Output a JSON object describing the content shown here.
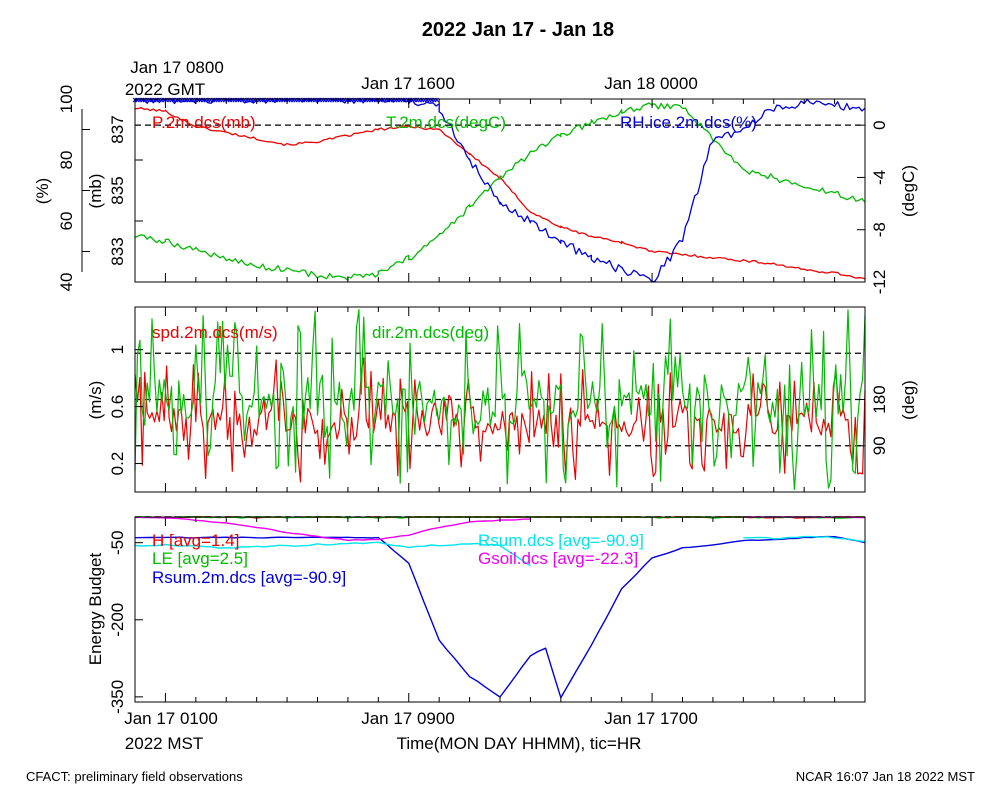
{
  "page": {
    "title": "2022 Jan 17 - Jan 18",
    "footer_left": "CFACT: preliminary field observations",
    "footer_right": "NCAR 16:07 Jan 18 2022 MST",
    "top_time_labels": [
      {
        "hour": 0,
        "lines": [
          "Jan 17 0800",
          "2022 GMT"
        ]
      },
      {
        "hour": 8,
        "lines": [
          "Jan 17 1600"
        ]
      },
      {
        "hour": 16,
        "lines": [
          "Jan 18 0000"
        ]
      }
    ],
    "bottom_time_labels": [
      {
        "hour": 0,
        "lines": [
          "Jan 17 0100",
          "2022 MST"
        ]
      },
      {
        "hour": 8,
        "lines": [
          "Jan 17 0900"
        ]
      },
      {
        "hour": 16,
        "lines": [
          "Jan 17 1700"
        ]
      }
    ],
    "xlabel": "Time(MON DAY HHMM), tic=HR"
  },
  "colors": {
    "red": "#ee0000",
    "green": "#00bb00",
    "blue": "#0000dd",
    "cyan": "#00e5ee",
    "magenta": "#ee00ee",
    "black": "#000000"
  },
  "chart_data": [
    {
      "type": "line",
      "panel": "state",
      "xlim": [
        -1,
        23
      ],
      "hours_per_tick": 1,
      "axes": {
        "rh": {
          "label": "(%)",
          "ylim": [
            40,
            100
          ],
          "ticks": [
            40,
            60,
            80,
            100
          ]
        },
        "p": {
          "label": "(mb)",
          "ylim": [
            832,
            838
          ],
          "ticks": [
            833,
            835,
            837
          ]
        },
        "t": {
          "label": "(degC)",
          "ylim": [
            -12,
            2
          ],
          "ticks": [
            -12,
            -8,
            -4,
            0
          ]
        }
      },
      "reference_lines": [
        {
          "axis": "t",
          "value": 0
        }
      ],
      "series": [
        {
          "name": "P.2m.dcs(mb)",
          "axis": "p",
          "color": "red",
          "x": [
            -1,
            0,
            1,
            2,
            3,
            4,
            5,
            6,
            7,
            8,
            9,
            10,
            11,
            12,
            13,
            14,
            15,
            16,
            17,
            18,
            19,
            20,
            21,
            22,
            23
          ],
          "y": [
            837.7,
            837.6,
            837.1,
            836.9,
            836.7,
            836.5,
            836.6,
            836.8,
            837.0,
            837.1,
            837.0,
            836.2,
            835.4,
            834.3,
            833.8,
            833.5,
            833.3,
            833.0,
            832.9,
            832.8,
            832.7,
            832.6,
            832.4,
            832.3,
            832.1
          ]
        },
        {
          "name": "T.2m.dcs(degC)",
          "axis": "t",
          "color": "green",
          "x": [
            -1,
            0,
            1,
            2,
            3,
            4,
            5,
            6,
            7,
            8,
            9,
            10,
            11,
            12,
            13,
            14,
            15,
            16,
            17,
            18,
            19,
            20,
            21,
            22,
            23
          ],
          "y": [
            -8.5,
            -8.9,
            -9.5,
            -10.2,
            -10.8,
            -11.0,
            -11.5,
            -11.7,
            -11.4,
            -10.2,
            -8.5,
            -6.3,
            -4.0,
            -2.2,
            -0.8,
            0.2,
            1.0,
            1.5,
            1.4,
            -1.0,
            -3.5,
            -4.0,
            -4.8,
            -5.2,
            -5.9
          ]
        },
        {
          "name": "RH.ice.2m.dcs(%)",
          "axis": "rh",
          "color": "blue",
          "x": [
            -1,
            0,
            1,
            2,
            3,
            4,
            5,
            6,
            7,
            8,
            9,
            10,
            11,
            12,
            13,
            14,
            15,
            16,
            17,
            18,
            19,
            20,
            21,
            22,
            23
          ],
          "y": [
            100,
            100,
            100,
            100,
            100,
            100,
            100,
            100,
            100,
            100,
            97,
            80,
            66,
            60,
            53,
            48,
            44,
            40,
            54,
            87,
            90,
            97,
            99,
            98,
            97
          ]
        }
      ]
    },
    {
      "type": "line",
      "panel": "wind",
      "xlim": [
        -1,
        23
      ],
      "hours_per_tick": 1,
      "axes": {
        "spd": {
          "label": "(m/s)",
          "ylim": [
            0,
            1.3
          ],
          "ticks": [
            0.2,
            0.6,
            1.0
          ]
        },
        "dir": {
          "label": "(deg)",
          "ylim": [
            0,
            360
          ],
          "ticks": [
            90,
            180
          ]
        }
      },
      "reference_lines": [
        {
          "axis": "dir",
          "value": 90
        },
        {
          "axis": "dir",
          "value": 180
        },
        {
          "axis": "dir",
          "value": 270
        }
      ],
      "series": [
        {
          "name": "spd.2m.dcs(m/s)",
          "axis": "spd",
          "color": "red",
          "style": "noisy",
          "seed": 7,
          "center": 0.5,
          "amplitude": 0.4,
          "range": [
            0.05,
            1.2
          ]
        },
        {
          "name": "dir.2m.dcs(deg)",
          "axis": "dir",
          "color": "green",
          "style": "noisy",
          "seed": 31,
          "center": 180,
          "amplitude": 170,
          "range": [
            5,
            355
          ]
        }
      ]
    },
    {
      "type": "line",
      "panel": "energy",
      "xlim": [
        -1,
        23
      ],
      "hours_per_tick": 1,
      "ylabel": "Energy Budget",
      "ylim": [
        -360,
        0
      ],
      "ticks": [
        -350,
        -200,
        -50
      ],
      "reference_lines": [
        {
          "value": 0
        }
      ],
      "series": [
        {
          "name": "H",
          "avg_label": "H [avg=1.4]",
          "color": "red",
          "x": [
            -1,
            8,
            9,
            10,
            11,
            12,
            13,
            14,
            15,
            16,
            23
          ],
          "y": [
            0,
            0,
            2,
            4,
            3,
            5,
            3,
            4,
            2,
            0,
            0
          ]
        },
        {
          "name": "LE",
          "avg_label": "LE [avg=2.5]",
          "color": "green",
          "x": [
            -1,
            8,
            9,
            10,
            11,
            12,
            13,
            14,
            15,
            16,
            23
          ],
          "y": [
            0,
            0,
            6,
            3,
            7,
            5,
            6,
            4,
            5,
            0,
            0
          ]
        },
        {
          "name": "Rsum.2m.dcs",
          "avg_label": "Rsum.2m.dcs [avg=-90.9]",
          "color": "blue",
          "x": [
            -1,
            7,
            8,
            9,
            10,
            11,
            12,
            12.5,
            13,
            14,
            15,
            16,
            17,
            18,
            19,
            20,
            21,
            22,
            23
          ],
          "y": [
            -40,
            -40,
            -90,
            -240,
            -310,
            -350,
            -270,
            -255,
            -352,
            -250,
            -140,
            -80,
            -60,
            -55,
            -46,
            -44,
            -40,
            -38,
            -50
          ]
        },
        {
          "name": "Rsum.dcs",
          "avg_label": "Rsum.dcs [avg=-90.9]",
          "color": "cyan",
          "x": [
            -1,
            0,
            1,
            2,
            3,
            4,
            5,
            6,
            7,
            8,
            9,
            10,
            11,
            12
          ],
          "y": [
            -55,
            -55,
            -57,
            -60,
            -58,
            -56,
            -53,
            -52,
            -50,
            -58,
            -55,
            -52,
            -55,
            -95
          ]
        },
        {
          "name": "Rsum.dcs",
          "color": "cyan",
          "x": [
            19,
            20,
            21,
            22,
            23
          ],
          "y": [
            -40,
            -42,
            -38,
            -40,
            -48
          ]
        },
        {
          "name": "Gsoil.dcs",
          "avg_label": "Gsoil.dcs [avg=-22.3]",
          "color": "magenta",
          "x": [
            -1,
            0,
            1,
            2,
            3,
            4,
            5,
            6,
            7,
            8,
            9,
            10,
            11,
            12
          ],
          "y": [
            0,
            -2,
            -6,
            -12,
            -20,
            -30,
            -38,
            -45,
            -44,
            -35,
            -20,
            -10,
            -6,
            -4
          ]
        },
        {
          "name": "Gsoil.dcs",
          "color": "magenta",
          "x": [
            19,
            20,
            21,
            22,
            23
          ],
          "y": [
            1,
            1,
            0,
            0,
            -1
          ]
        }
      ]
    }
  ]
}
